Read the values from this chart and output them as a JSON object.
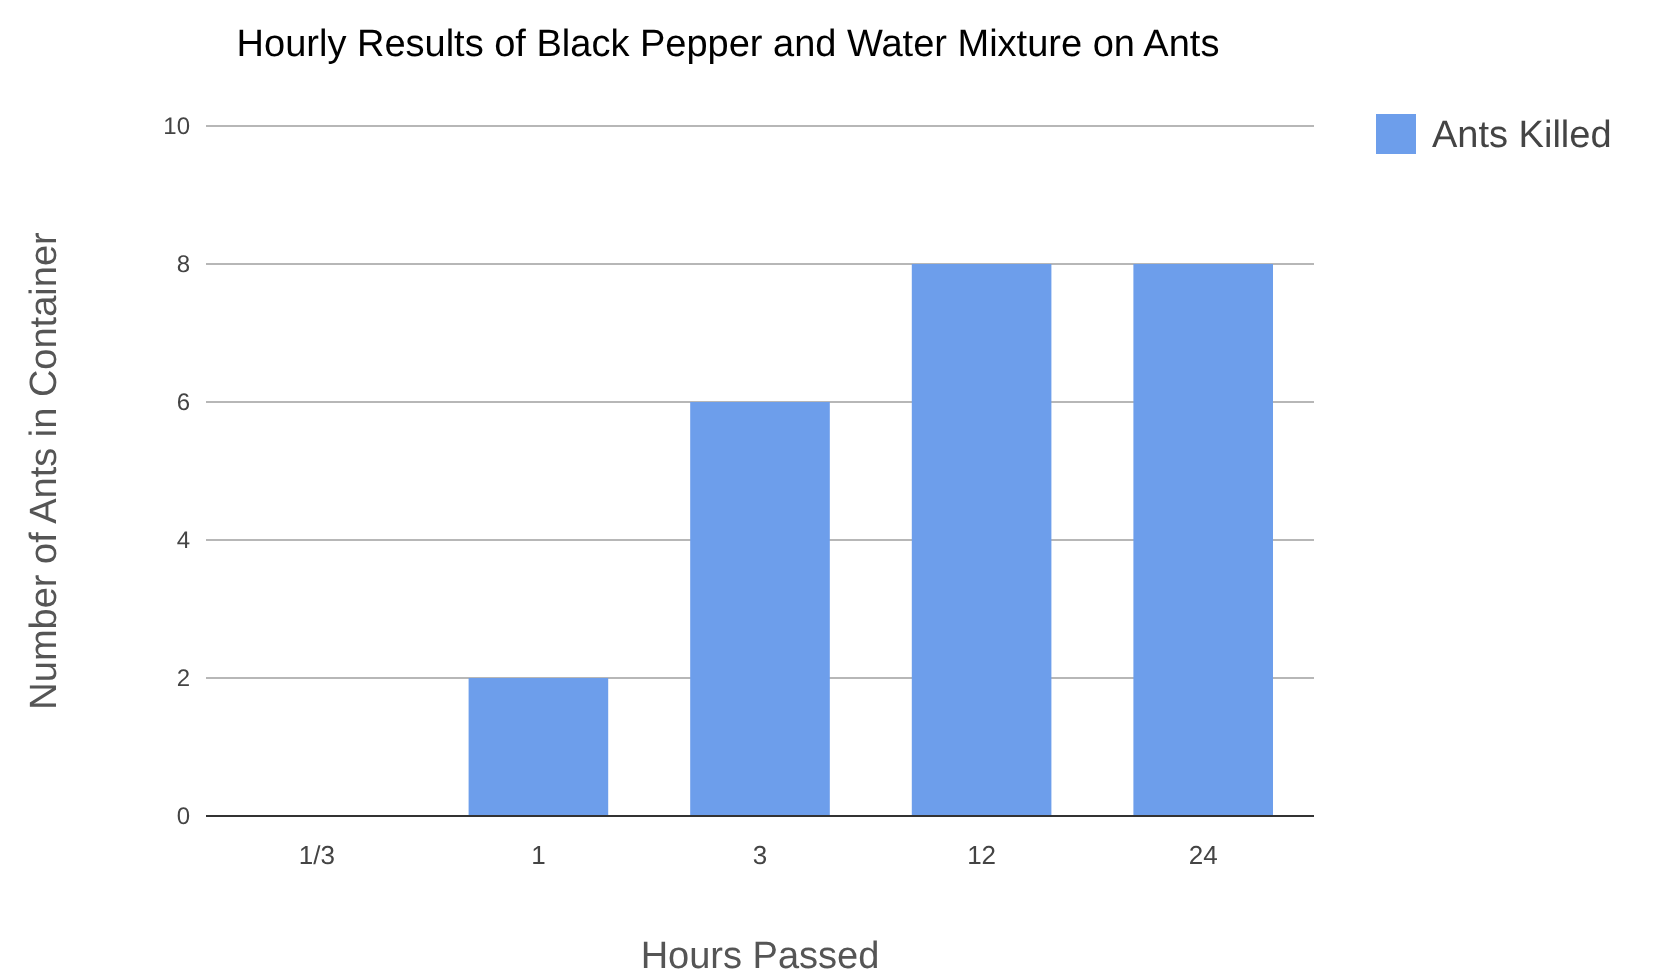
{
  "chart_data": {
    "type": "bar",
    "title": "Hourly Results of Black Pepper and Water Mixture on Ants",
    "xlabel": "Hours Passed",
    "ylabel": "Number of Ants in Container",
    "categories": [
      "1/3",
      "1",
      "3",
      "12",
      "24"
    ],
    "series": [
      {
        "name": "Ants Killed",
        "color": "#6d9eeb",
        "values": [
          0,
          2,
          6,
          8,
          8
        ]
      }
    ],
    "ylim": [
      0,
      10
    ],
    "yticks": [
      0,
      2,
      4,
      6,
      8,
      10
    ],
    "grid": "y",
    "legend": "top right"
  }
}
